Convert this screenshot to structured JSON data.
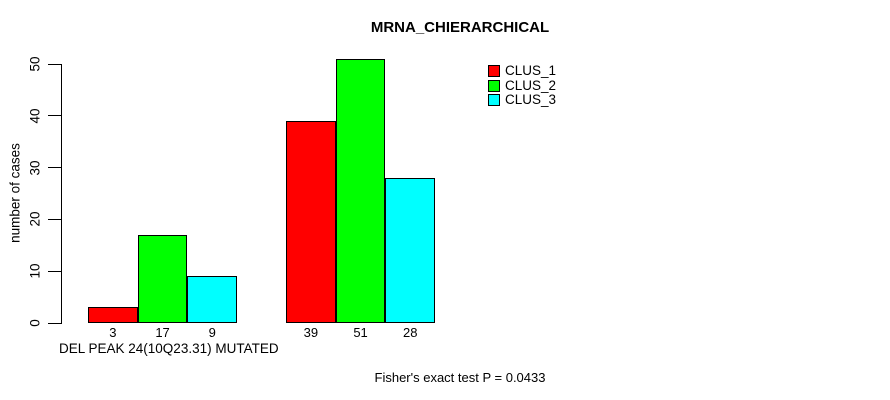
{
  "chart_data": {
    "type": "bar",
    "title": "MRNA_CHIERARCHICAL",
    "ylabel": "number of cases",
    "xlabel": "DEL PEAK 24(10Q23.31) MUTATED",
    "annotation": "Fisher's exact test P = 0.0433",
    "ylim": [
      0,
      50
    ],
    "yticks": [
      0,
      10,
      20,
      30,
      40,
      50
    ],
    "grid": false,
    "legend_position": "top-right",
    "groups": 2,
    "show_value_labels": true,
    "series": [
      {
        "name": "CLUS_1",
        "color": "#FF0000",
        "values": [
          3,
          39
        ]
      },
      {
        "name": "CLUS_2",
        "color": "#00FF00",
        "values": [
          17,
          51
        ]
      },
      {
        "name": "CLUS_3",
        "color": "#00FFFF",
        "values": [
          9,
          28
        ]
      }
    ]
  }
}
